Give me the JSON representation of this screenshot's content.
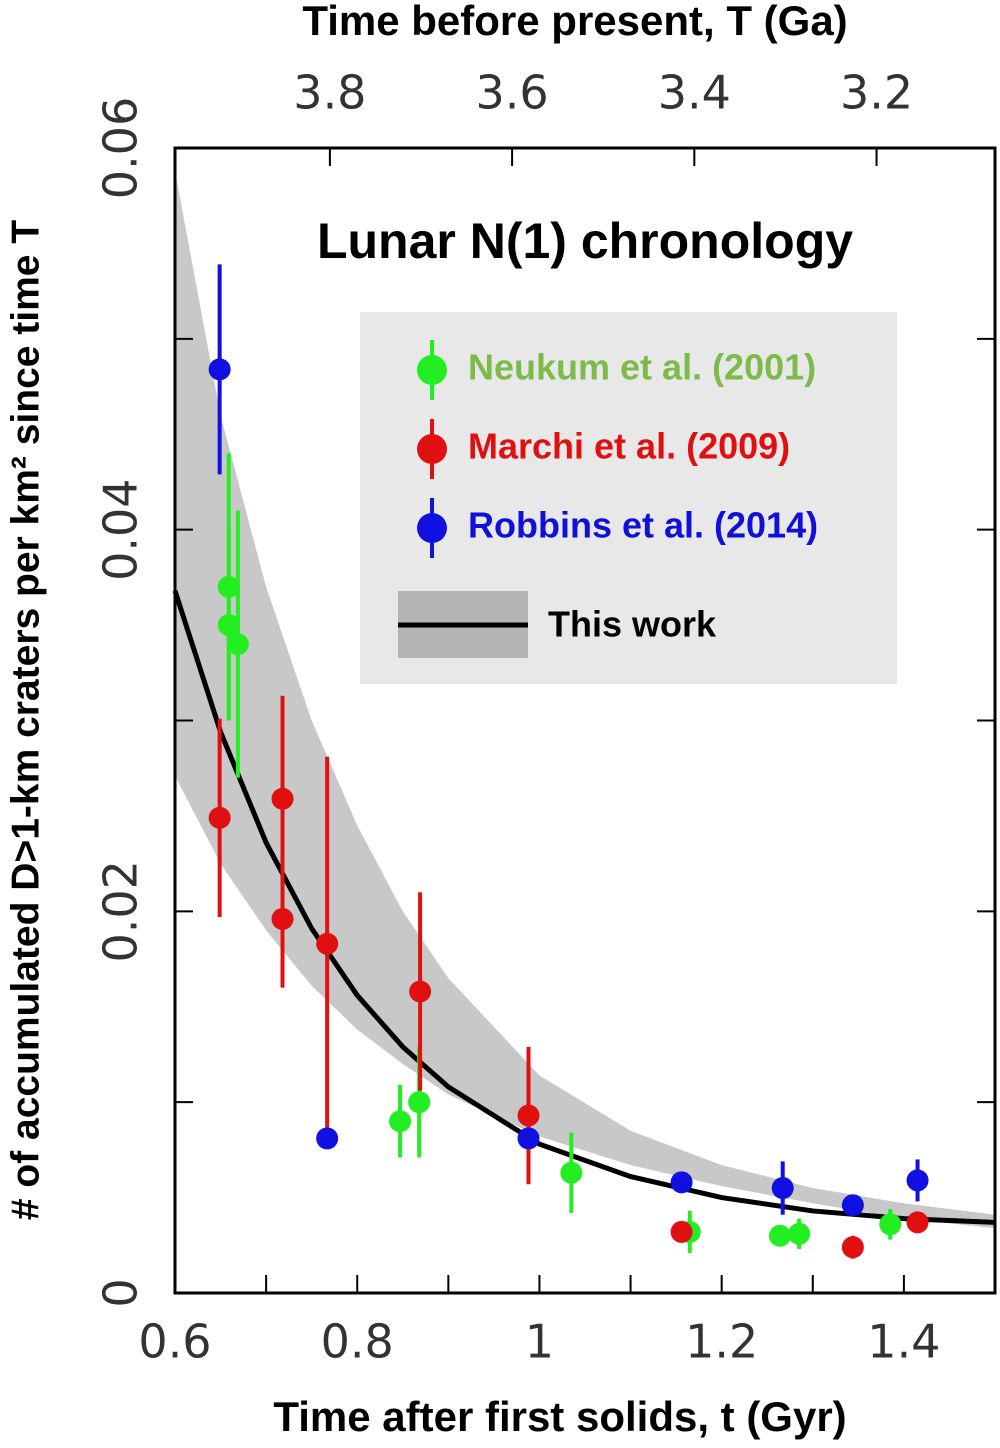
{
  "chart_data": {
    "type": "scatter",
    "title": "Lunar N(1) chronology",
    "x_label": "Time after first solids, t (Gyr)",
    "x2_label": "Time before present, T (Ga)",
    "y_label": "# of accumulated D>1-km craters per km² since time T",
    "xlim": [
      0.6,
      1.5
    ],
    "xticks": [
      0.6,
      0.8,
      1,
      1.2,
      1.4
    ],
    "xminorticks": [
      0.7,
      0.9,
      1.1,
      1.3
    ],
    "x2lim": [
      3.97,
      3.07
    ],
    "x2ticks": [
      3.8,
      3.6,
      3.4,
      3.2
    ],
    "ylim": [
      0,
      0.06
    ],
    "yticks": [
      0,
      0.02,
      0.04,
      0.06
    ],
    "yminorticks": [
      0.01,
      0.03,
      0.05
    ],
    "series": [
      {
        "name": "Neukum et al. (2001)",
        "color": "#22ee22",
        "label_color": "#7cbb4a",
        "x": [
          0.659,
          0.659,
          0.669,
          0.847,
          0.868,
          1.035,
          1.165,
          1.264,
          1.285,
          1.385
        ],
        "values": [
          0.037,
          0.035,
          0.034,
          0.009,
          0.01,
          0.0063,
          0.0032,
          0.003,
          0.0031,
          0.0036
        ],
        "errors": [
          0.007,
          0.005,
          0.007,
          0.0019,
          0.0029,
          0.0021,
          0.0011,
          0.0005,
          0.0008,
          0.0008
        ]
      },
      {
        "name": "Marchi et al. (2009)",
        "color": "#e01010",
        "label_color": "#e01010",
        "x": [
          0.649,
          0.718,
          0.718,
          0.767,
          0.869,
          0.988,
          1.156,
          1.344,
          1.415
        ],
        "values": [
          0.0249,
          0.0259,
          0.0196,
          0.0183,
          0.0158,
          0.0093,
          0.0032,
          0.0024,
          0.0037
        ],
        "errors": [
          0.0052,
          0.0054,
          0.0036,
          0.0098,
          0.0052,
          0.0036,
          0.0005,
          0.0006,
          0.0005
        ]
      },
      {
        "name": "Robbins et al. (2014)",
        "color": "#1010e0",
        "label_color": "#1010d8",
        "x": [
          0.649,
          0.767,
          0.988,
          1.156,
          1.267,
          1.344,
          1.415
        ],
        "values": [
          0.0484,
          0.0081,
          0.0081,
          0.0058,
          0.0055,
          0.0046,
          0.0059
        ],
        "errors": [
          0.0055,
          0.0005,
          0.0005,
          0.0005,
          0.0014,
          0.0005,
          0.0011
        ]
      }
    ],
    "model": {
      "name": "This work",
      "color": "#000000",
      "band_color": "#c8c8c8",
      "x": [
        0.6,
        0.65,
        0.7,
        0.75,
        0.8,
        0.85,
        0.9,
        1.0,
        1.1,
        1.2,
        1.3,
        1.4,
        1.5
      ],
      "values": [
        0.0368,
        0.0294,
        0.0236,
        0.0191,
        0.0156,
        0.0129,
        0.0108,
        0.0078,
        0.0061,
        0.005,
        0.0043,
        0.0039,
        0.0037
      ],
      "band_upper": [
        0.0588,
        0.046,
        0.037,
        0.03,
        0.0245,
        0.02,
        0.0165,
        0.0114,
        0.0085,
        0.0067,
        0.0055,
        0.0047,
        0.0041
      ],
      "band_lower": [
        0.0271,
        0.0225,
        0.019,
        0.0161,
        0.0138,
        0.012,
        0.0104,
        0.0082,
        0.0067,
        0.0056,
        0.0047,
        0.0039,
        0.0034
      ]
    }
  }
}
